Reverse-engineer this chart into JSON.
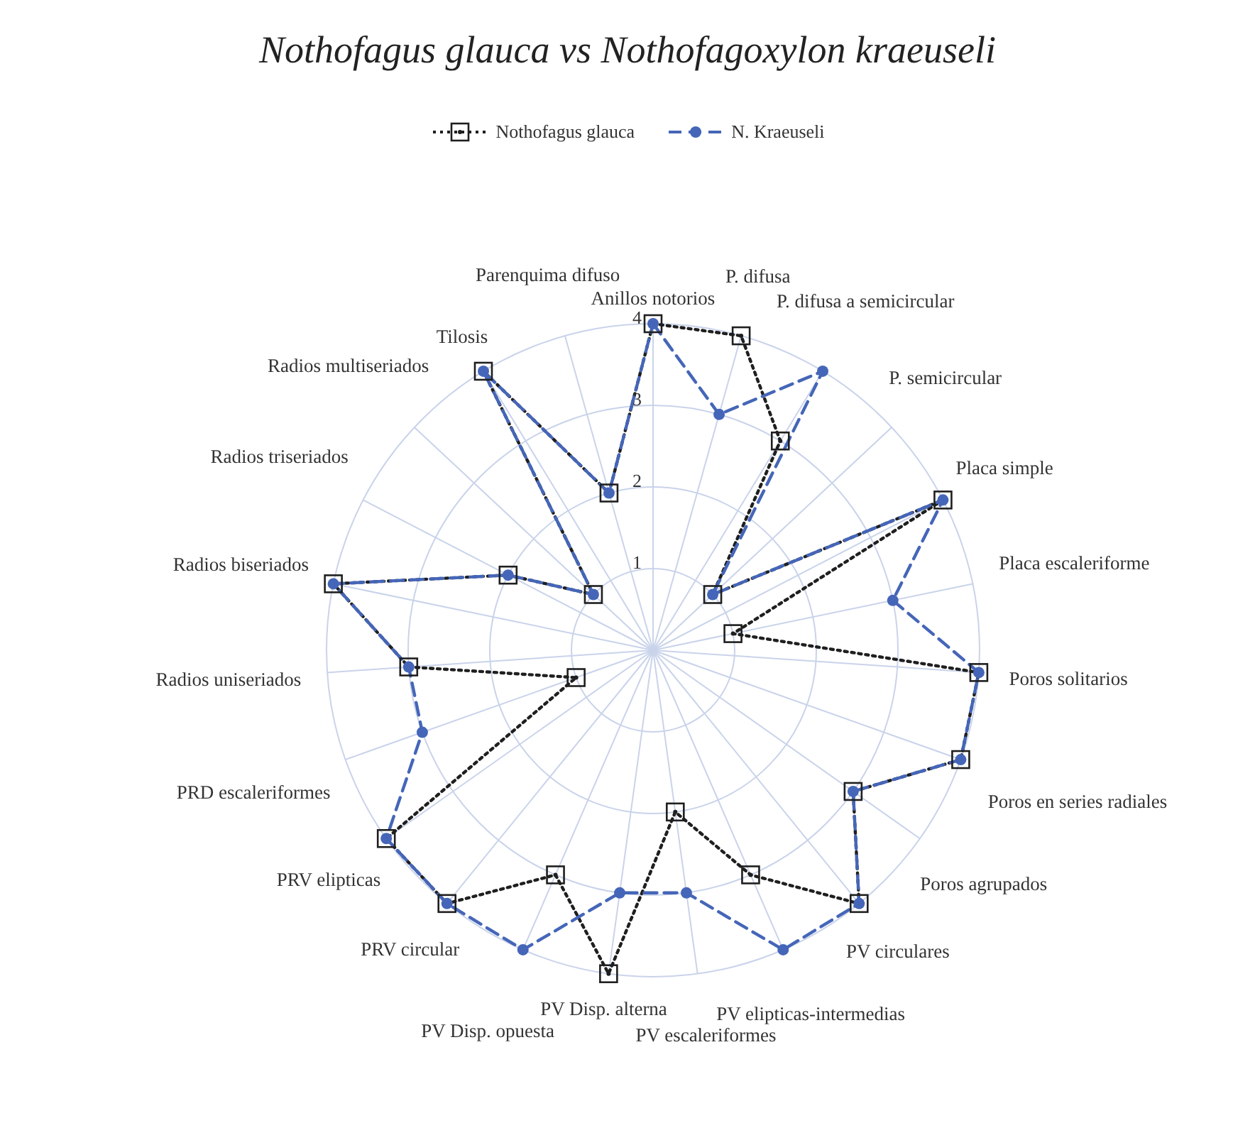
{
  "chart_data": {
    "type": "radar",
    "title": "Nothofagus glauca vs Nothofagoxylon kraeuseli",
    "categories": [
      "Anillos notorios",
      "P. difusa",
      "P. difusa a semicircular",
      "P. semicircular",
      "Placa simple",
      "Placa escaleriforme",
      "Poros solitarios",
      "Poros en series radiales",
      "Poros agrupados",
      "PV circulares",
      "PV elipticas-intermedias",
      "PV escaleriformes",
      "PV Disp. alterna",
      "PV Disp. opuesta",
      "PRV circular",
      "PRV elipticas",
      "PRD escaleriformes",
      "Radios uniseriados",
      "Radios biseriados",
      "Radios triseriados",
      "Radios multiseriados",
      "Tilosis",
      "Parenquima difuso"
    ],
    "series": [
      {
        "name": "Nothofagus glauca",
        "color": "#1f1f1f",
        "marker": "square",
        "line_style": "dotted",
        "values": [
          4,
          4,
          3,
          1,
          4,
          1,
          4,
          4,
          3,
          4,
          3,
          2,
          4,
          3,
          4,
          4,
          1,
          3,
          4,
          2,
          1,
          4,
          2
        ]
      },
      {
        "name": "N. Kraeuseli",
        "color": "#4566b8",
        "marker": "circle",
        "line_style": "dashed",
        "values": [
          4,
          3,
          4,
          1,
          4,
          3,
          4,
          4,
          3,
          4,
          4,
          3,
          3,
          4,
          4,
          4,
          3,
          3,
          4,
          2,
          1,
          4,
          2
        ]
      }
    ],
    "ylim": [
      0,
      4
    ],
    "yticks": [
      1,
      2,
      3,
      4
    ],
    "grid": true,
    "legend": "top"
  }
}
